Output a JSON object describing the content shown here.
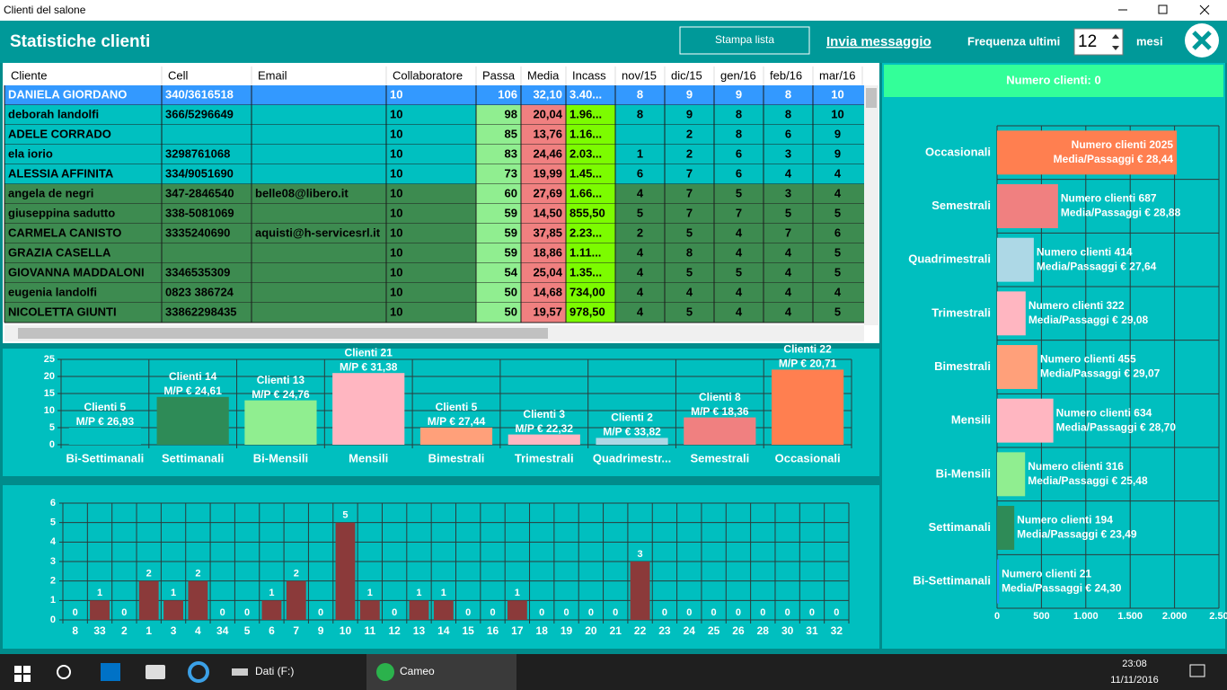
{
  "window": {
    "title": "Clienti del salone"
  },
  "header": {
    "title": "Statistiche clienti",
    "print_button": "Stampa lista",
    "send_link": "Invia messaggio",
    "freq_label": "Frequenza ultimi",
    "freq_value": 12,
    "freq_unit": "mesi"
  },
  "table": {
    "columns": [
      "Cliente",
      "Cell",
      "Email",
      "Collaboratore",
      "Passa",
      "Media",
      "Incass",
      "nov/15",
      "dic/15",
      "gen/16",
      "feb/16",
      "mar/16"
    ],
    "column_colors": [
      null,
      null,
      null,
      null,
      "#90ee90",
      "#f08080",
      "#7cfc00",
      null,
      null,
      null,
      null,
      null
    ],
    "row_colors": [
      "#3399ff",
      "#00c0c0",
      "#00c0c0",
      "#00c0c0",
      "#00c0c0",
      "#3d8b50",
      "#3d8b50",
      "#3d8b50",
      "#3d8b50",
      "#3d8b50",
      "#3d8b50",
      "#3d8b50"
    ],
    "rows": [
      [
        "DANIELA GIORDANO",
        "340/3616518",
        null,
        "10",
        "106",
        "32,10",
        "3.40...",
        "8",
        "9",
        "9",
        "8",
        "10"
      ],
      [
        "deborah landolfi",
        "366/5296649",
        null,
        "10",
        "98",
        "20,04",
        "1.96...",
        "8",
        "9",
        "8",
        "8",
        "10"
      ],
      [
        "ADELE CORRADO",
        null,
        null,
        "10",
        "85",
        "13,76",
        "1.16...",
        null,
        "2",
        "8",
        "6",
        "9"
      ],
      [
        "ela iorio",
        "3298761068",
        null,
        "10",
        "83",
        "24,46",
        "2.03...",
        "1",
        "2",
        "6",
        "3",
        "9"
      ],
      [
        "ALESSIA AFFINITA",
        "334/9051690",
        null,
        "10",
        "73",
        "19,99",
        "1.45...",
        "6",
        "7",
        "6",
        "4",
        "4"
      ],
      [
        "angela de negri",
        "347-2846540",
        "belle08@libero.it",
        "10",
        "60",
        "27,69",
        "1.66...",
        "4",
        "7",
        "5",
        "3",
        "4"
      ],
      [
        "giuseppina sadutto",
        "338-5081069",
        null,
        "10",
        "59",
        "14,50",
        "855,50",
        "5",
        "7",
        "7",
        "5",
        "5"
      ],
      [
        "CARMELA CANISTO",
        "3335240690",
        "aquisti@h-servicesrl.it",
        "10",
        "59",
        "37,85",
        "2.23...",
        "2",
        "5",
        "4",
        "7",
        "6"
      ],
      [
        "GRAZIA CASELLA",
        null,
        null,
        "10",
        "59",
        "18,86",
        "1.11...",
        "4",
        "8",
        "4",
        "4",
        "5"
      ],
      [
        "GIOVANNA MADDALONI",
        "3346535309",
        null,
        "10",
        "54",
        "25,04",
        "1.35...",
        "4",
        "5",
        "5",
        "4",
        "5"
      ],
      [
        "eugenia landolfi",
        "0823 386724",
        null,
        "10",
        "50",
        "14,68",
        "734,00",
        "4",
        "4",
        "4",
        "4",
        "4"
      ],
      [
        "NICOLETTA GIUNTI",
        "33862298435",
        null,
        "10",
        "50",
        "19,57",
        "978,50",
        "4",
        "5",
        "4",
        "4",
        "5"
      ]
    ]
  },
  "chart_data": [
    {
      "type": "bar",
      "orientation": "vertical",
      "categories": [
        "Bi-Settimanali",
        "Settimanali",
        "Bi-Mensili",
        "Mensili",
        "Bimestrali",
        "Trimestrali",
        "Quadrimestr...",
        "Semestrali",
        "Occasionali"
      ],
      "values": [
        5,
        14,
        13,
        21,
        5,
        3,
        2,
        8,
        22
      ],
      "value_labels": [
        "Clienti 5",
        "Clienti 14",
        "Clienti 13",
        "Clienti 21",
        "Clienti 5",
        "Clienti 3",
        "Clienti 2",
        "Clienti 8",
        "Clienti 22"
      ],
      "sub_labels": [
        "M/P € 26,93",
        "M/P € 24,61",
        "M/P € 24,76",
        "M/P € 31,38",
        "M/P € 27,44",
        "M/P € 22,32",
        "M/P € 33,82",
        "M/P € 18,36",
        "M/P € 20,71"
      ],
      "colors": [
        "#00c0c0",
        "#2e8b57",
        "#90ee90",
        "#ffb6c1",
        "#ffa07a",
        "#ffb6c1",
        "#add8e6",
        "#f08080",
        "#ff7f50"
      ],
      "ylim": [
        0,
        25
      ],
      "yticks": [
        0,
        5,
        10,
        15,
        20,
        25
      ],
      "grid": true
    },
    {
      "type": "bar",
      "orientation": "vertical",
      "categories": [
        "8",
        "33",
        "2",
        "1",
        "3",
        "4",
        "34",
        "5",
        "6",
        "7",
        "9",
        "10",
        "11",
        "12",
        "13",
        "14",
        "15",
        "16",
        "17",
        "18",
        "19",
        "20",
        "21",
        "22",
        "23",
        "24",
        "25",
        "26",
        "28",
        "30",
        "31",
        "32"
      ],
      "values": [
        0,
        1,
        0,
        2,
        1,
        2,
        0,
        0,
        1,
        2,
        0,
        5,
        1,
        0,
        1,
        1,
        0,
        0,
        1,
        0,
        0,
        0,
        0,
        3,
        0,
        0,
        0,
        0,
        0,
        0,
        0,
        0
      ],
      "color": "#8b3a3a",
      "ylim": [
        0,
        6
      ],
      "yticks": [
        0,
        1,
        2,
        3,
        4,
        5,
        6
      ],
      "grid": true
    },
    {
      "type": "bar",
      "orientation": "horizontal",
      "title": "Numero clienti: 0",
      "categories": [
        "Occasionali",
        "Semestrali",
        "Quadrimestrali",
        "Trimestrali",
        "Bimestrali",
        "Mensili",
        "Bi-Mensili",
        "Settimanali",
        "Bi-Settimanali"
      ],
      "values": [
        2025,
        687,
        414,
        322,
        455,
        634,
        316,
        194,
        21
      ],
      "value_labels": [
        "Numero clienti 2025",
        "Numero clienti 687",
        "Numero clienti 414",
        "Numero clienti 322",
        "Numero clienti 455",
        "Numero clienti 634",
        "Numero clienti 316",
        "Numero clienti 194",
        "Numero clienti 21"
      ],
      "sub_labels": [
        "Media/Passaggi €  28,44",
        "Media/Passaggi €  28,88",
        "Media/Passaggi €  27,64",
        "Media/Passaggi €  29,08",
        "Media/Passaggi €  29,07",
        "Media/Passaggi €  28,70",
        "Media/Passaggi €  25,48",
        "Media/Passaggi €  23,49",
        "Media/Passaggi €  24,30"
      ],
      "colors": [
        "#ff7f50",
        "#f08080",
        "#add8e6",
        "#ffb6c1",
        "#ffa07a",
        "#ffb6c1",
        "#90ee90",
        "#2e8b57",
        "#1e90ff"
      ],
      "xlim": [
        0,
        2500
      ],
      "xticks": [
        0,
        500,
        {
          "value": 1000,
          "label": "1.000"
        },
        {
          "value": 1500,
          "label": "1.500"
        },
        {
          "value": 2000,
          "label": "2.000"
        },
        {
          "value": 2500,
          "label": "2.50"
        }
      ],
      "grid": true
    }
  ],
  "taskbar": {
    "items": [
      "Dati (F:)",
      "Cameo"
    ],
    "time": "23:08",
    "date": "11/11/2016"
  }
}
